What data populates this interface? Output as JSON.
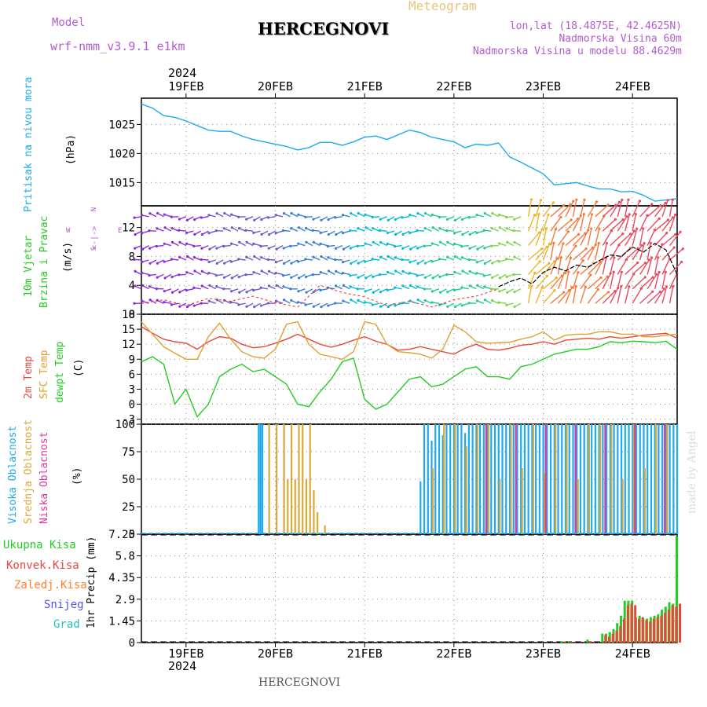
{
  "header": {
    "model_label": "Model",
    "model_name": "wrf-nmm_v3.9.1 e1km",
    "title": "HERCEGNOVI",
    "meteogram_label": "Meteogram",
    "lonlat": "lon,lat (18.4875E, 42.4625N)",
    "altitude": "Nadmorska Visina 60m",
    "model_altitude": "Nadmorska Visina u modelu 88.4629m",
    "footer_station": "HERCEGNOVI",
    "credit": "made by Angel"
  },
  "colors": {
    "pressure": "#1eaaf0",
    "temp2m": "#e8473c",
    "sfc_temp": "#e0a030",
    "dewpoint": "#22cc22",
    "high_cloud": "#1eaaf0",
    "mid_cloud": "#dba83a",
    "low_cloud": "#e0389a",
    "total_precip": "#22cc22",
    "conv_precip": "#e8473c",
    "freezing": "#ff8030",
    "snow": "#5050ff",
    "hail": "#20c0c0",
    "gust": "#ff2020",
    "wind_speed": "#000000"
  },
  "chart_data": [
    {
      "panel": "pressure",
      "type": "line",
      "title": "",
      "ylabel_lines": [
        "Pritisak na nivou mora",
        "(hPa)"
      ],
      "unit": "(hPa)",
      "year_label": "2024",
      "x_ticks": [
        "19FEB",
        "20FEB",
        "21FEB",
        "22FEB",
        "23FEB",
        "24FEB"
      ],
      "x_range_hours": [
        -12,
        132
      ],
      "ylim": [
        1011,
        1029.5
      ],
      "y_ticks": [
        "1015",
        "1020",
        "1025"
      ],
      "y_tick_values": [
        1015,
        1020,
        1025
      ],
      "series": [
        {
          "x": [
            -12,
            -9,
            -6,
            -3,
            0,
            3,
            6,
            9,
            12,
            15,
            18,
            21,
            24,
            27,
            30,
            33,
            36,
            39,
            42,
            45,
            48,
            51,
            54,
            57,
            60,
            63,
            66,
            69,
            72,
            75,
            78,
            81,
            84,
            87,
            90,
            93,
            96,
            99,
            102,
            105,
            108,
            111,
            114,
            117,
            120,
            123,
            126,
            129,
            132
          ],
          "values": [
            1028.5,
            1027.8,
            1026.5,
            1026.2,
            1025.6,
            1024.8,
            1024.0,
            1023.8,
            1023.8,
            1023.0,
            1022.4,
            1022.0,
            1021.6,
            1021.2,
            1020.6,
            1021.0,
            1021.9,
            1021.9,
            1021.4,
            1022.0,
            1022.8,
            1023.0,
            1022.4,
            1023.2,
            1024.0,
            1023.6,
            1022.8,
            1022.4,
            1022.0,
            1021.0,
            1021.6,
            1021.4,
            1021.8,
            1019.4,
            1018.5,
            1017.5,
            1016.5,
            1014.6,
            1014.8,
            1015.0,
            1014.4,
            1013.9,
            1013.9,
            1013.4,
            1013.5,
            1012.8,
            1011.8,
            1012.0,
            1012.2
          ]
        }
      ]
    },
    {
      "panel": "wind",
      "type": "line",
      "title": "",
      "ylabel_lines": [
        "10m Vjetar",
        "Brzina i Pravac",
        "(m/s)"
      ],
      "compass_text": [
        "N",
        "<-|->",
        "E",
        "W",
        "S"
      ],
      "ylim": [
        0,
        15
      ],
      "y_ticks": [
        "0",
        "4",
        "8",
        "12"
      ],
      "y_tick_values": [
        0,
        4,
        8,
        12
      ],
      "series": [
        {
          "name": "speed",
          "x": [
            84,
            87,
            90,
            93,
            96,
            99,
            102,
            105,
            108,
            111,
            114,
            117,
            120,
            123,
            126,
            129,
            132
          ],
          "values": [
            3.8,
            4.5,
            5.0,
            4.2,
            5.8,
            6.5,
            6.0,
            6.8,
            6.5,
            7.4,
            8.2,
            8.0,
            9.3,
            8.6,
            9.8,
            8.9,
            5.5
          ]
        },
        {
          "name": "gust",
          "x": [
            -12,
            -6,
            0,
            6,
            12,
            18,
            24,
            30,
            36,
            42,
            48,
            54,
            60,
            66,
            72,
            78,
            84
          ],
          "values": [
            1.5,
            2.0,
            1.2,
            2.2,
            1.8,
            2.5,
            1.6,
            1.0,
            4.0,
            3.0,
            2.4,
            1.2,
            1.8,
            1.0,
            2.0,
            2.5,
            3.5
          ]
        }
      ],
      "barbs_hours": [
        -12,
        -10,
        -8,
        -6,
        -4,
        -2,
        0,
        2,
        4,
        6,
        8,
        10,
        12,
        14,
        16,
        18,
        20,
        22,
        24,
        26,
        28,
        30,
        32,
        34,
        36,
        38,
        40,
        42,
        44,
        46,
        48,
        50,
        52,
        54,
        56,
        58,
        60,
        62,
        64,
        66,
        68,
        70,
        72,
        74,
        76,
        78,
        80,
        82,
        84,
        86,
        88,
        90,
        92,
        94,
        96,
        98,
        100,
        102,
        104,
        106,
        108,
        110,
        112,
        114,
        116,
        118,
        120,
        122,
        124,
        126,
        128,
        130
      ]
    },
    {
      "panel": "temperature",
      "type": "line",
      "title": "",
      "ylabel_lines": [
        "2m Temp",
        "SFC Temp",
        "dewpt Temp",
        "(C)"
      ],
      "ylim": [
        -4,
        18
      ],
      "y_ticks": [
        "-3",
        "0",
        "3",
        "6",
        "9",
        "12",
        "15",
        "18"
      ],
      "y_tick_values": [
        -3,
        0,
        3,
        6,
        9,
        12,
        15,
        18
      ],
      "x": [
        -12,
        -9,
        -6,
        -3,
        0,
        3,
        6,
        9,
        12,
        15,
        18,
        21,
        24,
        27,
        30,
        33,
        36,
        39,
        42,
        45,
        48,
        51,
        54,
        57,
        60,
        63,
        66,
        69,
        72,
        75,
        78,
        81,
        84,
        87,
        90,
        93,
        96,
        99,
        102,
        105,
        108,
        111,
        114,
        117,
        120,
        123,
        126,
        129,
        132
      ],
      "series": [
        {
          "name": "2m Temp",
          "values": [
            15.5,
            14.2,
            13.0,
            12.5,
            12.2,
            11.0,
            12.5,
            13.5,
            13.2,
            12.0,
            11.3,
            11.5,
            12.2,
            13.0,
            14.0,
            13.0,
            12.0,
            11.4,
            12.0,
            12.8,
            13.5,
            12.6,
            12.0,
            10.8,
            11.0,
            11.5,
            11.0,
            10.5,
            10.0,
            11.2,
            12.0,
            11.0,
            10.8,
            11.2,
            11.8,
            12.0,
            12.5,
            12.0,
            12.8,
            13.0,
            13.2,
            13.0,
            13.5,
            13.2,
            13.5,
            13.8,
            14.0,
            14.2,
            13.2
          ]
        },
        {
          "name": "SFC Temp",
          "values": [
            16.5,
            14.0,
            11.5,
            10.2,
            9.0,
            9.0,
            13.5,
            16.2,
            13.0,
            10.5,
            9.5,
            9.2,
            11.0,
            16.0,
            16.5,
            12.0,
            10.0,
            9.5,
            9.0,
            10.5,
            16.5,
            16.0,
            12.0,
            10.5,
            10.3,
            10.0,
            9.2,
            11.0,
            15.8,
            14.5,
            12.5,
            12.2,
            12.3,
            12.4,
            13.0,
            13.5,
            14.5,
            12.8,
            13.8,
            14.0,
            14.0,
            14.5,
            14.5,
            14.0,
            14.0,
            13.5,
            13.5,
            13.8,
            14.0
          ]
        },
        {
          "name": "dewpt Temp",
          "values": [
            8.5,
            9.5,
            8.0,
            0.0,
            3.0,
            -2.5,
            0.0,
            5.5,
            7.0,
            8.0,
            6.5,
            7.0,
            5.5,
            4.0,
            0.0,
            -0.5,
            2.5,
            5.0,
            8.5,
            9.2,
            1.0,
            -1.0,
            0.0,
            2.5,
            5.0,
            5.5,
            3.5,
            4.0,
            5.5,
            7.0,
            7.5,
            5.5,
            5.5,
            5.0,
            7.5,
            8.0,
            9.0,
            10.0,
            10.5,
            11.0,
            11.0,
            11.5,
            12.5,
            12.3,
            12.6,
            12.5,
            12.3,
            12.6,
            11.0
          ]
        }
      ]
    },
    {
      "panel": "clouds",
      "type": "bar",
      "title": "",
      "ylabel_lines": [
        "Visoka Oblacnost",
        "Srednja Oblacnost",
        "Niska Oblacnost",
        "(%)"
      ],
      "ylim": [
        0,
        100
      ],
      "y_ticks": [
        "0",
        "25",
        "50",
        "75",
        "100"
      ],
      "y_tick_values": [
        0,
        25,
        50,
        75,
        100
      ],
      "series": [
        {
          "name": "Visoka Oblacnost",
          "x": [
            19.5,
            20,
            20.5,
            36,
            37,
            63,
            64,
            65,
            66,
            67,
            68,
            69,
            70,
            71,
            72,
            73,
            74,
            75,
            76,
            77,
            78,
            79,
            80,
            81,
            82,
            83,
            84,
            85,
            86,
            87,
            88,
            89,
            90,
            91,
            92,
            93,
            94,
            95,
            96,
            97,
            98,
            99,
            100,
            101,
            102,
            103,
            104,
            105,
            106,
            107,
            108,
            109,
            110,
            111,
            112,
            113,
            114,
            115,
            116,
            117,
            118,
            119,
            120,
            121,
            122,
            123,
            124,
            125,
            126,
            127,
            128,
            129,
            130,
            131,
            132
          ],
          "values": [
            100,
            100,
            100,
            1,
            1,
            48,
            100,
            100,
            85,
            100,
            100,
            90,
            100,
            100,
            100,
            100,
            100,
            92,
            100,
            100,
            100,
            100,
            100,
            100,
            100,
            100,
            100,
            100,
            100,
            100,
            100,
            100,
            100,
            100,
            100,
            100,
            100,
            100,
            100,
            100,
            100,
            100,
            100,
            100,
            100,
            100,
            100,
            100,
            100,
            100,
            100,
            100,
            100,
            100,
            100,
            100,
            100,
            100,
            100,
            100,
            100,
            100,
            100,
            100,
            100,
            100,
            100,
            100,
            100,
            100,
            100,
            100,
            100,
            100,
            100
          ]
        },
        {
          "name": "Srednja Oblacnost",
          "x": [
            22,
            24,
            26,
            27,
            28,
            29,
            30,
            31,
            32,
            33,
            34,
            35,
            37,
            66,
            69,
            72,
            75,
            78,
            81,
            84,
            87,
            90,
            93,
            96,
            99,
            102,
            105,
            108,
            111,
            114,
            117,
            120,
            123,
            126,
            129
          ],
          "values": [
            100,
            100,
            100,
            50,
            100,
            50,
            100,
            100,
            50,
            100,
            40,
            20,
            8,
            60,
            100,
            100,
            80,
            100,
            100,
            50,
            100,
            60,
            100,
            55,
            100,
            100,
            50,
            100,
            100,
            100,
            50,
            100,
            60,
            100,
            100
          ]
        },
        {
          "name": "Niska Oblacnost",
          "x": [
            80,
            88,
            96,
            104,
            112,
            120,
            128
          ],
          "values": [
            100,
            100,
            100,
            100,
            100,
            100,
            100
          ]
        }
      ]
    },
    {
      "panel": "precipitation",
      "type": "bar",
      "title": "",
      "ylabel_lines": [
        "1hr Precip (mm)"
      ],
      "legend": [
        "Ukupna Kisa",
        "Konvek.Kisa",
        "Zaledj.Kisa",
        "Snijeg",
        "Grad"
      ],
      "x_ticks": [
        "19FEB",
        "20FEB",
        "21FEB",
        "22FEB",
        "23FEB",
        "24FEB"
      ],
      "year_label": "2024",
      "ylim": [
        0,
        7.25
      ],
      "y_ticks": [
        "0",
        "1.45",
        "2.9",
        "4.35",
        "5.8",
        "7.25"
      ],
      "y_tick_values": [
        0,
        1.45,
        2.9,
        4.35,
        5.8,
        7.25
      ],
      "series": [
        {
          "name": "Ukupna Kisa",
          "x": [
            101,
            103,
            108,
            112,
            113,
            114,
            115,
            116,
            117,
            118,
            119,
            120,
            121,
            122,
            123,
            124,
            125,
            126,
            127,
            128,
            129,
            130,
            131,
            132
          ],
          "values": [
            0.1,
            0.1,
            0.2,
            0.6,
            0.6,
            0.7,
            0.9,
            1.3,
            1.8,
            2.8,
            2.8,
            2.8,
            1.7,
            1.8,
            1.6,
            1.6,
            1.7,
            1.8,
            1.9,
            2.2,
            2.4,
            2.7,
            2.6,
            7.1
          ]
        },
        {
          "name": "Konvek.Kisa",
          "x": [
            101,
            103,
            108,
            112,
            113,
            114,
            115,
            116,
            117,
            118,
            119,
            120,
            121,
            122,
            123,
            124,
            125,
            126,
            127,
            128,
            129,
            130,
            131,
            132
          ],
          "values": [
            0.08,
            0.05,
            0.1,
            0.5,
            0.4,
            0.6,
            0.8,
            1.1,
            1.6,
            2.5,
            2.6,
            2.5,
            1.6,
            1.7,
            1.5,
            1.4,
            1.6,
            1.7,
            1.8,
            2.0,
            2.2,
            2.5,
            2.4,
            2.6
          ]
        }
      ]
    }
  ]
}
